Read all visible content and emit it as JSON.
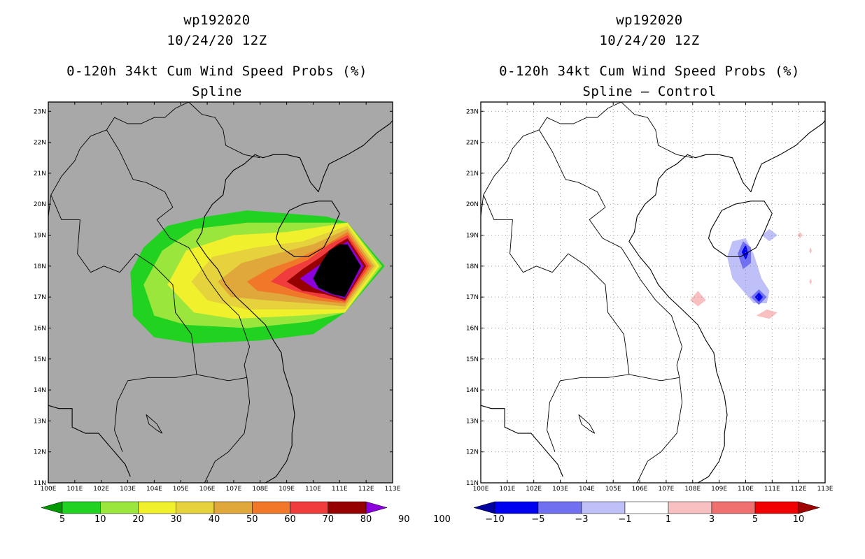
{
  "left_panel": {
    "title_lines": [
      "wp192020",
      "10/24/20 12Z",
      "0-120h 34kt Cum Wind Speed Probs (%)",
      "Spline"
    ],
    "background": "#a8a8a8",
    "colorbar": {
      "colors": [
        "#009a00",
        "#21d221",
        "#9be63d",
        "#f0f02c",
        "#e6d23c",
        "#e0a83a",
        "#f07828",
        "#f03c3c",
        "#960000",
        "#8c00dc"
      ],
      "labels": [
        "5",
        "10",
        "20",
        "30",
        "40",
        "50",
        "60",
        "70",
        "80",
        "90",
        "100"
      ]
    }
  },
  "right_panel": {
    "title_lines": [
      "wp192020",
      "10/24/20 12Z",
      "0-120h 34kt Cum Wind Speed Probs (%)",
      "Spline – Control"
    ],
    "background": "#ffffff",
    "colorbar": {
      "colors": [
        "#0000a0",
        "#0000f0",
        "#7070f0",
        "#c0c0f8",
        "#ffffff",
        "#f8c0c0",
        "#f07070",
        "#f00000",
        "#a00000"
      ],
      "labels": [
        "−10",
        "−5",
        "−3",
        "−1",
        "1",
        "3",
        "5",
        "10"
      ]
    }
  },
  "axes": {
    "lon_labels": [
      "100E",
      "101E",
      "102E",
      "103E",
      "104E",
      "105E",
      "106E",
      "107E",
      "108E",
      "109E",
      "110E",
      "111E",
      "112E",
      "113E"
    ],
    "lat_labels": [
      "11N",
      "12N",
      "13N",
      "14N",
      "15N",
      "16N",
      "17N",
      "18N",
      "19N",
      "20N",
      "21N",
      "22N",
      "23N"
    ],
    "lon_range": [
      100,
      113
    ],
    "lat_range": [
      11,
      23.3
    ]
  }
}
